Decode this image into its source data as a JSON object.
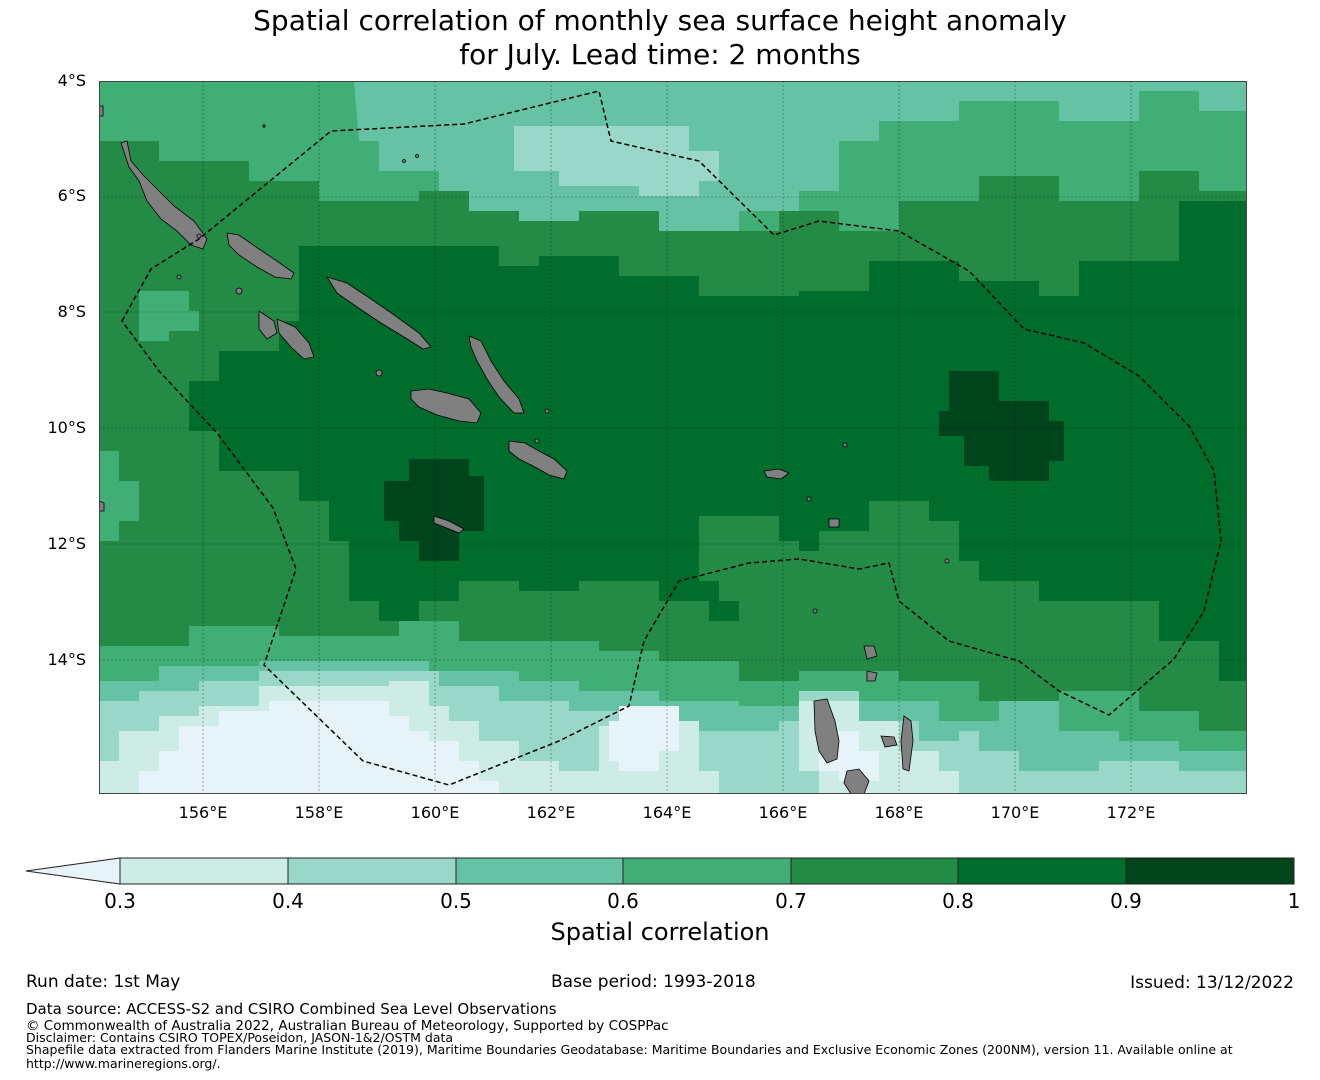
{
  "title": {
    "line1": "Spatial correlation of monthly sea surface height anomaly",
    "line2": "for July. Lead time: 2 months"
  },
  "map": {
    "lat_labels": [
      "4°S",
      "6°S",
      "8°S",
      "10°S",
      "12°S",
      "14°S"
    ],
    "lon_labels": [
      "156°E",
      "158°E",
      "160°E",
      "162°E",
      "164°E",
      "166°E",
      "168°E",
      "170°E",
      "172°E"
    ],
    "land_color": "#808080",
    "region": "Solomon Islands / Vanuatu EEZ"
  },
  "colorbar": {
    "label": "Spatial correlation",
    "ticks": [
      "0.3",
      "0.4",
      "0.5",
      "0.6",
      "0.7",
      "0.8",
      "0.9",
      "1"
    ],
    "colors": [
      "#e6f4f9",
      "#cdece5",
      "#99d8c9",
      "#66c2a4",
      "#41ae76",
      "#238b45",
      "#006d2c",
      "#00441b"
    ]
  },
  "footer": {
    "run_date": "Run date: 1st May",
    "base_period": "Base period: 1993-2018",
    "issued": "Issued: 13/12/2022",
    "data_source": "Data source: ACCESS-S2 and CSIRO Combined Sea Level Observations",
    "copyright": "© Commonwealth of Australia 2022, Australian Bureau of Meteorology, Supported by COSPPac",
    "disclaimer": "Disclaimer: Contains CSIRO TOPEX/Poseidon, JASON-1&2/OSTM data",
    "shapefile_1": "Shapefile data extracted from Flanders Marine Institute (2019), Maritime Boundaries Geodatabase: Maritime Boundaries and Exclusive Economic Zones (200NM), version 11. Available online at",
    "shapefile_2": "http://www.marineregions.org/."
  }
}
